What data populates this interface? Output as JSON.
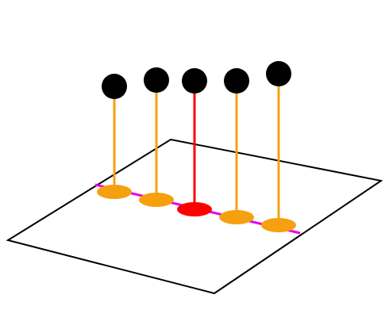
{
  "diagram": {
    "plane": {
      "stroke_color": "#000000",
      "fill_color": "#ffffff"
    },
    "line": {
      "color": "#e600e6"
    },
    "sticks": [
      {
        "stem_color": "#f5a00f",
        "base_color": "#f5a00f",
        "ball_color": "#000000",
        "highlighted": false
      },
      {
        "stem_color": "#f5a00f",
        "base_color": "#f5a00f",
        "ball_color": "#000000",
        "highlighted": false
      },
      {
        "stem_color": "#ff0000",
        "base_color": "#ff0000",
        "ball_color": "#000000",
        "highlighted": true
      },
      {
        "stem_color": "#f5a00f",
        "base_color": "#f5a00f",
        "ball_color": "#000000",
        "highlighted": false
      },
      {
        "stem_color": "#f5a00f",
        "base_color": "#f5a00f",
        "ball_color": "#000000",
        "highlighted": false
      }
    ]
  }
}
